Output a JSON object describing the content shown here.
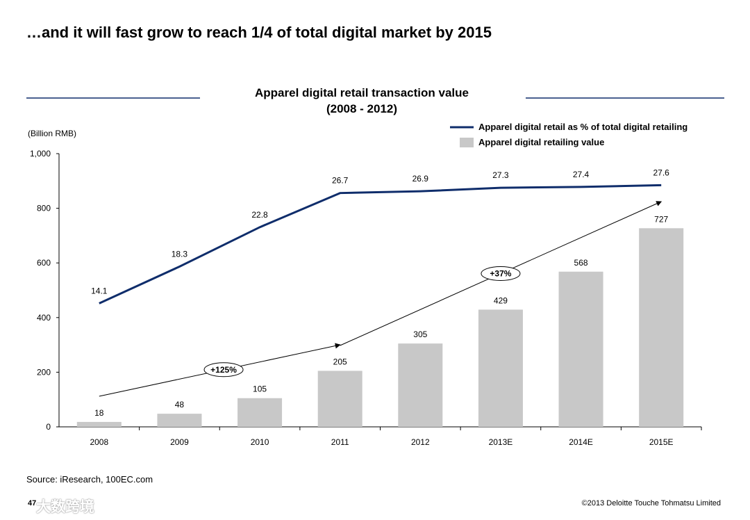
{
  "slide": {
    "title": "…and it will fast grow to reach 1/4 of total digital market  by 2015",
    "source": "Source: iResearch, 100EC.com",
    "page_number": "47",
    "copyright": "©2013 Deloitte Touche Tohmatsu Limited",
    "watermark": "大数跨境"
  },
  "chart_data": {
    "type": "bar",
    "title": "Apparel digital retail transaction value",
    "subtitle": "(2008 - 2012)",
    "ylabel": "(Billion RMB)",
    "ylim": [
      0,
      1000
    ],
    "yticks": [
      "0",
      "200",
      "400",
      "600",
      "800",
      "1,000"
    ],
    "categories": [
      "2008",
      "2009",
      "2010",
      "2011",
      "2012",
      "2013E",
      "2014E",
      "2015E"
    ],
    "series": [
      {
        "name": "Apparel digital retailing value",
        "type": "bar",
        "color": "#c8c8c8",
        "values": [
          18,
          48,
          105,
          205,
          305,
          429,
          568,
          727
        ],
        "labels": [
          "18",
          "48",
          "105",
          "205",
          "305",
          "429",
          "568",
          "727"
        ]
      },
      {
        "name": "Apparel digital retail as % of total digital retailing",
        "type": "line",
        "color": "#0f2d6b",
        "axis": "secondary",
        "secondary_ylim": [
          0,
          31.2
        ],
        "values": [
          14.1,
          18.3,
          22.8,
          26.7,
          26.9,
          27.3,
          27.4,
          27.6
        ],
        "labels": [
          "14.1",
          "18.3",
          "22.8",
          "26.7",
          "26.9",
          "27.3",
          "27.4",
          "27.6"
        ]
      }
    ],
    "legend": "top-right",
    "annotations": [
      {
        "text": "+125%"
      },
      {
        "text": "+37%"
      }
    ],
    "grid": false
  }
}
